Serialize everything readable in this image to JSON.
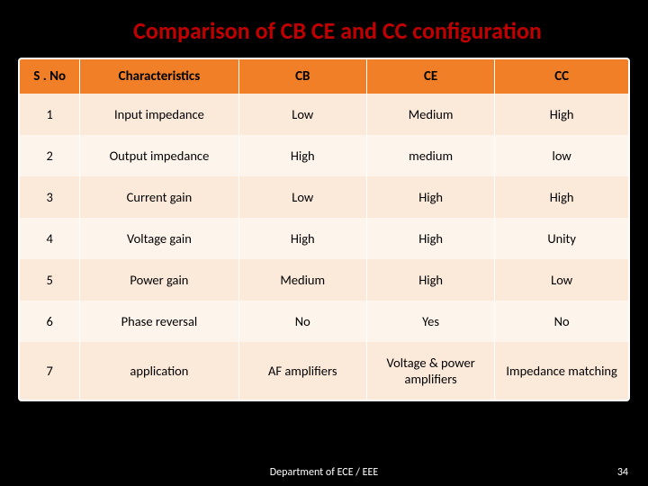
{
  "title": "Comparison of CB CE and CC configuration",
  "columns": [
    "S . No",
    "Characteristics",
    "CB",
    "CE",
    "CC"
  ],
  "rows": [
    [
      "1",
      "Input impedance",
      "Low",
      "Medium",
      "High"
    ],
    [
      "2",
      "Output impedance",
      "High",
      "medium",
      "low"
    ],
    [
      "3",
      "Current gain",
      "Low",
      "High",
      "High"
    ],
    [
      "4",
      "Voltage gain",
      "High",
      "High",
      "Unity"
    ],
    [
      "5",
      "Power gain",
      "Medium",
      "High",
      "Low"
    ],
    [
      "6",
      "Phase reversal",
      "No",
      "Yes",
      "No"
    ],
    [
      "7",
      "application",
      "AF amplifiers",
      "Voltage & power amplifiers",
      "Impedance matching"
    ]
  ],
  "footer": "Department of ECE / EEE",
  "page_number": "34",
  "colors": {
    "background": "#000000",
    "title": "#c00000",
    "header_bg": "#f07f28",
    "row_odd": "#fbe9da",
    "row_even": "#fdf4ec",
    "footer_text": "#ffffff"
  }
}
